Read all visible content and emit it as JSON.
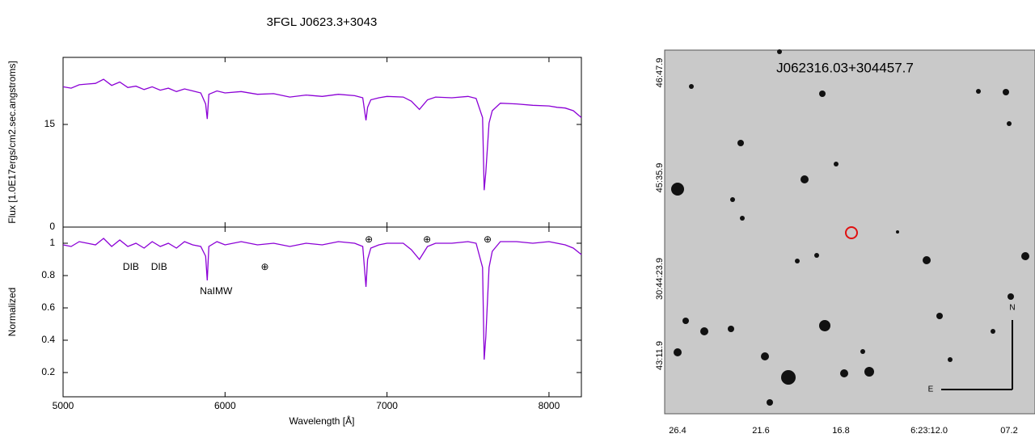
{
  "chart_data": [
    {
      "type": "line",
      "title": "3FGL J0623.3+3043",
      "xlabel": "Wavelength [Å]",
      "x": [
        5000,
        5050,
        5100,
        5150,
        5200,
        5250,
        5300,
        5350,
        5400,
        5450,
        5500,
        5550,
        5600,
        5650,
        5700,
        5750,
        5800,
        5850,
        5880,
        5890,
        5900,
        5950,
        6000,
        6100,
        6200,
        6300,
        6400,
        6500,
        6600,
        6700,
        6800,
        6850,
        6870,
        6880,
        6900,
        6950,
        7000,
        7100,
        7150,
        7200,
        7250,
        7300,
        7400,
        7500,
        7550,
        7590,
        7600,
        7610,
        7630,
        7650,
        7700,
        7800,
        7900,
        8000,
        8050,
        8100,
        8150,
        8200
      ],
      "xlim": [
        5000,
        8200
      ],
      "xticks": [
        5000,
        6000,
        7000,
        8000
      ],
      "panels": [
        {
          "ylabel": "Flux [1.0E17ergs/cm2.sec.angstroms]",
          "ylim": [
            0,
            24.8
          ],
          "yticks": [
            0,
            15
          ],
          "series": [
            {
              "color": "#8b00d6",
              "values": [
                20.5,
                20.3,
                20.8,
                20.9,
                21.0,
                21.6,
                20.7,
                21.2,
                20.4,
                20.6,
                20.1,
                20.5,
                20.0,
                20.3,
                19.8,
                20.2,
                19.9,
                19.6,
                18.0,
                15.8,
                19.4,
                19.9,
                19.6,
                19.8,
                19.4,
                19.5,
                19.0,
                19.3,
                19.1,
                19.4,
                19.2,
                18.9,
                15.6,
                17.5,
                18.6,
                18.9,
                19.1,
                19.0,
                18.4,
                17.2,
                18.6,
                19.0,
                18.9,
                19.1,
                18.8,
                16.0,
                5.4,
                8.0,
                15.2,
                17.0,
                18.1,
                18.0,
                17.8,
                17.7,
                17.5,
                17.4,
                17.0,
                16.0
              ]
            }
          ]
        },
        {
          "ylabel": "Normalized",
          "ylim": [
            0.05,
            1.1
          ],
          "yticks": [
            0.2,
            0.4,
            0.6,
            0.8,
            1
          ],
          "series": [
            {
              "color": "#8b00d6",
              "values": [
                0.99,
                0.98,
                1.01,
                1.0,
                0.99,
                1.03,
                0.98,
                1.02,
                0.98,
                1.0,
                0.97,
                1.01,
                0.98,
                1.0,
                0.97,
                1.01,
                0.99,
                0.98,
                0.92,
                0.77,
                0.98,
                1.01,
                0.99,
                1.01,
                0.99,
                1.0,
                0.98,
                1.0,
                0.99,
                1.01,
                1.0,
                0.98,
                0.73,
                0.9,
                0.97,
                0.99,
                1.0,
                1.0,
                0.96,
                0.9,
                0.98,
                1.0,
                1.0,
                1.01,
                1.0,
                0.85,
                0.28,
                0.42,
                0.85,
                0.95,
                1.01,
                1.01,
                1.0,
                1.01,
                1.0,
                0.99,
                0.97,
                0.93
              ]
            }
          ]
        }
      ],
      "annotations": [
        {
          "text": "DIB",
          "x": 5419,
          "y": 0.85
        },
        {
          "text": "DIB",
          "x": 5593,
          "y": 0.85
        },
        {
          "text": "NaIMW",
          "x": 5945,
          "y": 0.7
        },
        {
          "text": "⊕",
          "x": 6246,
          "y": 0.85
        },
        {
          "text": "⊕",
          "x": 6888,
          "y": 1.02
        },
        {
          "text": "⊕",
          "x": 7247,
          "y": 1.02
        },
        {
          "text": "⊕",
          "x": 7621,
          "y": 1.02
        }
      ]
    },
    {
      "type": "image",
      "title": "J062316.03+304457.7",
      "y_labels": [
        "46:47.9",
        "45:35.9",
        "30:44:23.9",
        "43:11.9"
      ],
      "x_labels": [
        "26.4",
        "21.6",
        "16.8",
        "6:23:12.0",
        "07.2"
      ],
      "compass": [
        "N",
        "E"
      ]
    }
  ]
}
